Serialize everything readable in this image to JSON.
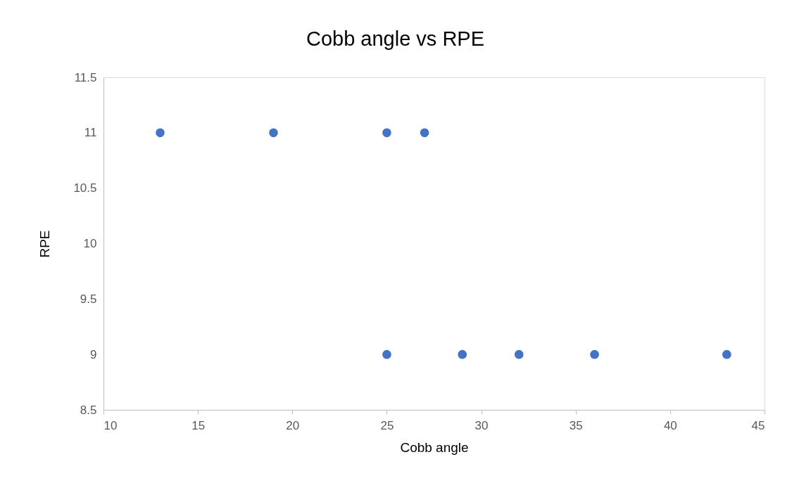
{
  "chart_data": {
    "type": "scatter",
    "title": "Cobb angle vs RPE",
    "xlabel": "Cobb angle",
    "ylabel": "RPE",
    "series": [
      {
        "color": "#4472c4",
        "x": [
          13,
          19,
          25,
          27,
          25,
          29,
          32,
          36,
          43
        ],
        "values": [
          11,
          11,
          11,
          11,
          9,
          9,
          9,
          9,
          9
        ]
      }
    ],
    "xlim": [
      10,
      45
    ],
    "xticks": [
      10,
      15,
      20,
      25,
      30,
      35,
      40,
      45
    ],
    "ylim": [
      8.5,
      11.5
    ],
    "yticks": [
      8.5,
      9,
      9.5,
      10,
      10.5,
      11,
      11.5
    ],
    "grid": false,
    "marker": "circle"
  }
}
